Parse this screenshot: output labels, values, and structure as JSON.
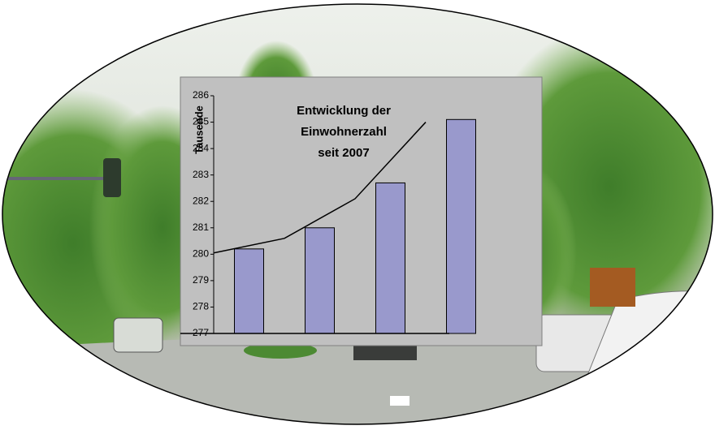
{
  "chart_data": {
    "type": "bar",
    "title": [
      "Entwicklung der",
      "Einwohnerzahl",
      "seit 2007"
    ],
    "y_label": "Tausende",
    "categories": [
      null,
      null,
      null,
      null
    ],
    "series": [
      {
        "type": "bar",
        "color": "#9999cc",
        "values": [
          280.2,
          281.0,
          282.7,
          285.1
        ]
      },
      {
        "type": "line",
        "color": "#000000",
        "values": [
          280.05,
          280.6,
          282.1,
          285.0
        ]
      }
    ],
    "ylim": [
      277,
      286
    ],
    "yticks": [
      277,
      278,
      279,
      280,
      281,
      282,
      283,
      284,
      285,
      286
    ],
    "grid": false
  }
}
